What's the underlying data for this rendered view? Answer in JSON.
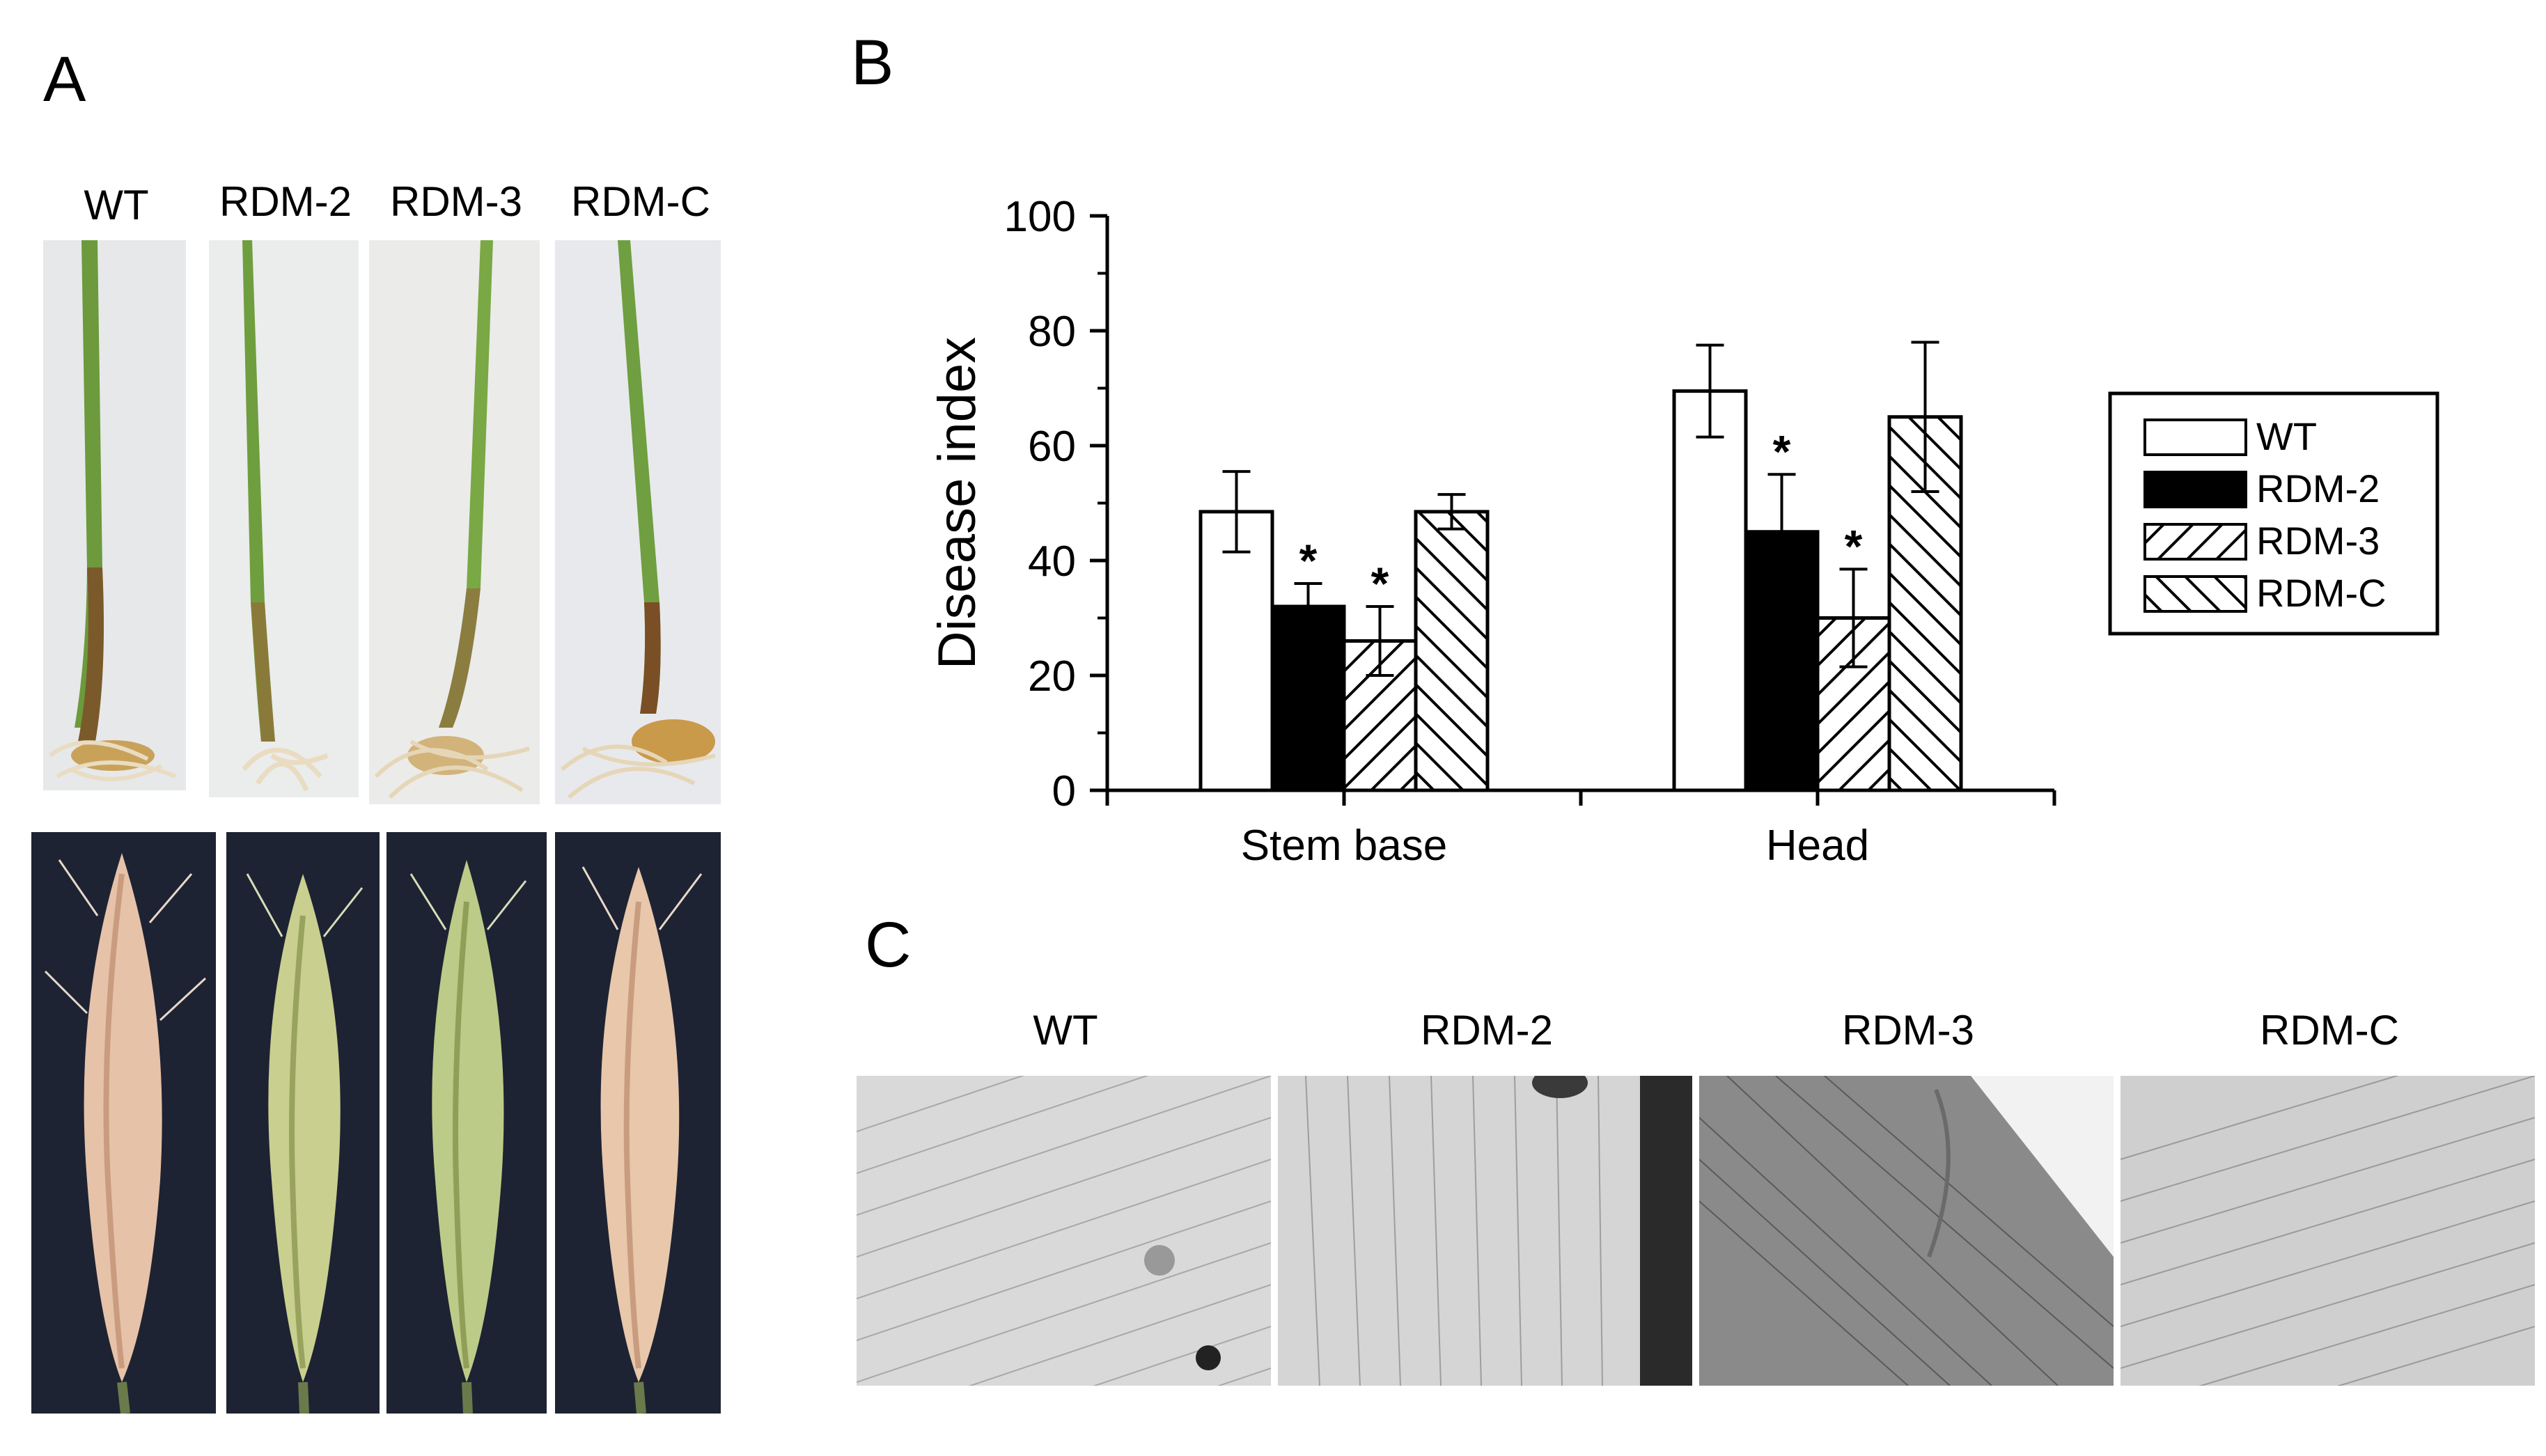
{
  "panels": {
    "a": "A",
    "b": "B",
    "c": "C"
  },
  "panel_a": {
    "labels": [
      "WT",
      "RDM-2",
      "RDM-3",
      "RDM-C"
    ]
  },
  "panel_c": {
    "labels": [
      "WT",
      "RDM-2",
      "RDM-3",
      "RDM-C"
    ]
  },
  "chart_data": {
    "type": "bar",
    "ylabel": "Disease index",
    "xlabel": "",
    "ylim": [
      0,
      100
    ],
    "yticks": [
      0,
      20,
      40,
      60,
      80,
      100
    ],
    "categories": [
      "Stem base",
      "Head"
    ],
    "series": [
      {
        "name": "WT",
        "values": [
          48.5,
          69.5
        ],
        "errors": [
          7.0,
          8.0
        ],
        "fill": "white",
        "significant": [
          false,
          false
        ]
      },
      {
        "name": "RDM-2",
        "values": [
          32.0,
          45.0
        ],
        "errors": [
          4.0,
          10.0
        ],
        "fill": "black",
        "significant": [
          true,
          true
        ]
      },
      {
        "name": "RDM-3",
        "values": [
          26.0,
          30.0
        ],
        "errors": [
          6.0,
          8.5
        ],
        "fill": "hatch-forward",
        "significant": [
          true,
          true
        ]
      },
      {
        "name": "RDM-C",
        "values": [
          48.5,
          65.0
        ],
        "errors": [
          3.0,
          13.0
        ],
        "fill": "hatch-backward",
        "significant": [
          false,
          false
        ]
      }
    ],
    "significance_marker": "*",
    "legend_position": "right"
  }
}
